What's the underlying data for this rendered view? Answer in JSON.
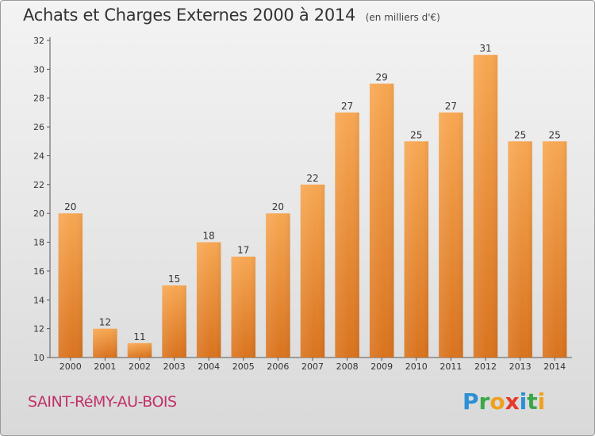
{
  "title": "Achats et Charges Externes 2000 à 2014",
  "subtitle": "(en milliers d'€)",
  "location": "SAINT-RéMY-AU-BOIS",
  "logo_text": "Proxiti",
  "colors": {
    "bar_top": "#f7a752",
    "bar_bottom": "#d9731e",
    "title": "#333333",
    "location": "#c0306a"
  },
  "chart_data": {
    "type": "bar",
    "title": "Achats et Charges Externes 2000 à 2014",
    "subtitle": "(en milliers d'€)",
    "categories": [
      "2000",
      "2001",
      "2002",
      "2003",
      "2004",
      "2005",
      "2006",
      "2007",
      "2008",
      "2009",
      "2010",
      "2011",
      "2012",
      "2013",
      "2014"
    ],
    "values": [
      20,
      12,
      11,
      15,
      18,
      17,
      20,
      22,
      27,
      29,
      25,
      27,
      31,
      25,
      25
    ],
    "ylim": [
      10,
      32
    ],
    "yticks": [
      10,
      12,
      14,
      16,
      18,
      20,
      22,
      24,
      26,
      28,
      30,
      32
    ],
    "xlabel": "",
    "ylabel": "",
    "grid": false,
    "data_labels": true
  }
}
